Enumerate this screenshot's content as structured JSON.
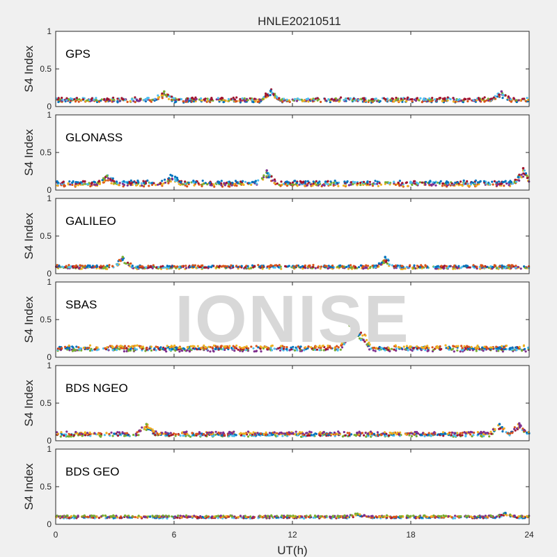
{
  "watermark": "IONISE",
  "colors": {
    "background": "#f0f0f0",
    "axes": "#ffffff",
    "frame": "#262626",
    "series": [
      "#0072BD",
      "#D95319",
      "#EDB120",
      "#7E2F8E",
      "#77AC30",
      "#4DBEEE",
      "#A2142F"
    ]
  },
  "chart_data": {
    "type": "scatter",
    "title": "HNLE20210511",
    "xlabel": "UT(h)",
    "ylabel": "S4 Index",
    "xlim": [
      0,
      24
    ],
    "ylim": [
      0,
      1
    ],
    "xticks": [
      0,
      6,
      12,
      18,
      24
    ],
    "yticks": [
      0,
      0.5,
      1
    ],
    "grid": false,
    "panels": [
      {
        "label": "GPS",
        "description_level": "baseline S4 ~0.05-0.15, occasional peaks ~0.2",
        "baseline": 0.09,
        "spread": 0.05,
        "bumps": [
          {
            "x": 5.5,
            "y": 0.2
          },
          {
            "x": 10.9,
            "y": 0.21
          },
          {
            "x": 22.6,
            "y": 0.2
          }
        ]
      },
      {
        "label": "GLONASS",
        "description_level": "baseline S4 ~0.05-0.18, peak ~0.3 near 24h",
        "baseline": 0.09,
        "spread": 0.06,
        "bumps": [
          {
            "x": 2.6,
            "y": 0.19
          },
          {
            "x": 5.9,
            "y": 0.19
          },
          {
            "x": 10.7,
            "y": 0.26
          },
          {
            "x": 23.7,
            "y": 0.29
          }
        ]
      },
      {
        "label": "GALILEO",
        "description_level": "baseline S4 ~0.05-0.15, peaks ~0.22",
        "baseline": 0.09,
        "spread": 0.04,
        "bumps": [
          {
            "x": 3.4,
            "y": 0.22
          },
          {
            "x": 16.7,
            "y": 0.22
          }
        ]
      },
      {
        "label": "SBAS",
        "description_level": "flat bands ~0.05-0.18, outlier ~0.4 near 14.9h",
        "baseline": 0.12,
        "spread": 0.06,
        "bumps": [
          {
            "x": 14.9,
            "y": 0.42
          },
          {
            "x": 15.4,
            "y": 0.3
          },
          {
            "x": 15.6,
            "y": 0.23
          }
        ]
      },
      {
        "label": "BDS NGEO",
        "description_level": "baseline S4 ~0.05-0.15, peaks ~0.22",
        "baseline": 0.09,
        "spread": 0.05,
        "bumps": [
          {
            "x": 4.6,
            "y": 0.22
          },
          {
            "x": 22.5,
            "y": 0.22
          },
          {
            "x": 23.5,
            "y": 0.23
          }
        ]
      },
      {
        "label": "BDS GEO",
        "description_level": "tight bands ~0.05-0.14",
        "baseline": 0.1,
        "spread": 0.03,
        "bumps": [
          {
            "x": 15.3,
            "y": 0.14
          },
          {
            "x": 22.8,
            "y": 0.15
          }
        ]
      }
    ]
  }
}
